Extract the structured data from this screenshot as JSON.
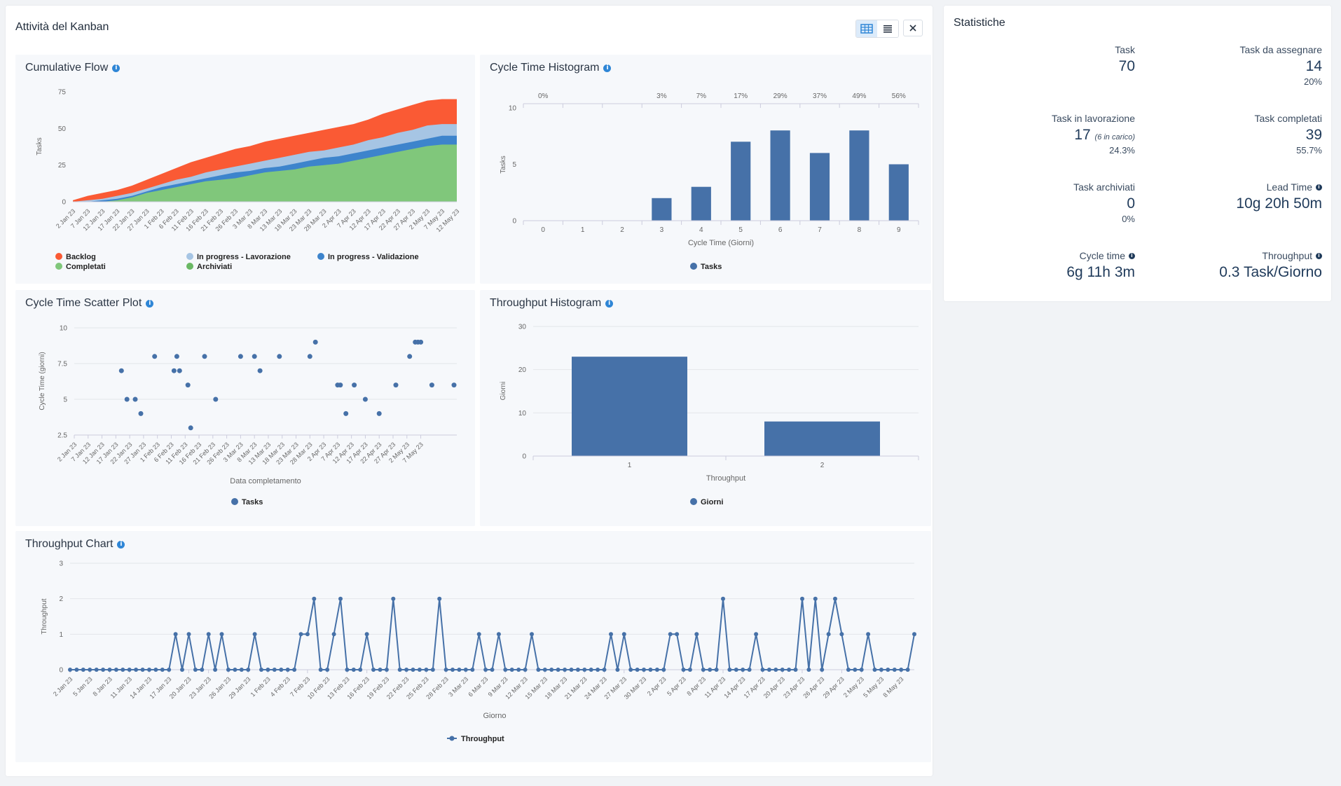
{
  "main": {
    "title": "Attività del Kanban",
    "view_buttons": [
      {
        "icon": "table-grid-icon",
        "active": true
      },
      {
        "icon": "list-icon",
        "active": false
      }
    ],
    "close_icon": "close-icon"
  },
  "colors": {
    "accent": "#2f86d6",
    "series_blue": "#4671a8",
    "backlog": "#fa5a34",
    "lavorazione": "#a6c5e4",
    "validazione": "#3d84cc",
    "completati": "#80c77b"
  },
  "stats": {
    "title": "Statistiche",
    "items": [
      {
        "label": "Task",
        "value": "70"
      },
      {
        "label": "Task da assegnare",
        "value": "14",
        "sub": "20%"
      },
      {
        "label": "Task in lavorazione",
        "value": "17",
        "note": "(6 in carico)",
        "sub": "24.3%"
      },
      {
        "label": "Task completati",
        "value": "39",
        "sub": "55.7%"
      },
      {
        "label": "Task archiviati",
        "value": "0",
        "sub": "0%"
      },
      {
        "label": "Lead Time",
        "value": "10g 20h 50m",
        "info": true
      },
      {
        "label": "Cycle time",
        "value": "6g 11h 3m",
        "info": true
      },
      {
        "label": "Throughput",
        "value": "0.3 Task/Giorno",
        "info": true
      }
    ]
  },
  "chart_data": [
    {
      "id": "cfd",
      "title": "Cumulative Flow",
      "type": "area",
      "ylabel": "Tasks",
      "ylim": [
        0,
        75
      ],
      "yticks": [
        "0",
        "25",
        "50",
        "75"
      ],
      "x_labels": [
        "2 Jan 23",
        "7 Jan 23",
        "12 Jan 23",
        "17 Jan 23",
        "22 Jan 23",
        "27 Jan 23",
        "1 Feb 23",
        "6 Feb 23",
        "11 Feb 23",
        "16 Feb 23",
        "21 Feb 23",
        "26 Feb 23",
        "3 Mar 23",
        "8 Mar 23",
        "13 Mar 23",
        "18 Mar 23",
        "23 Mar 23",
        "28 Mar 23",
        "2 Apr 23",
        "7 Apr 23",
        "12 Apr 23",
        "17 Apr 23",
        "22 Apr 23",
        "27 Apr 23",
        "2 May 23",
        "7 May 23",
        "12 May 23"
      ],
      "legend": [
        {
          "name": "Backlog",
          "color": "#fa5a34"
        },
        {
          "name": "In progress - Lavorazione",
          "color": "#a6c5e4"
        },
        {
          "name": "In progress - Validazione",
          "color": "#3d84cc"
        },
        {
          "name": "Completati",
          "color": "#80c77b"
        },
        {
          "name": "Archiviati",
          "color": "#6ab864"
        }
      ],
      "series": [
        {
          "name": "Completati",
          "values": [
            0,
            0,
            0,
            1,
            3,
            6,
            8,
            10,
            12,
            14,
            15,
            16,
            18,
            20,
            21,
            22,
            24,
            25,
            26,
            28,
            30,
            32,
            34,
            36,
            38,
            39,
            39
          ]
        },
        {
          "name": "In progress - Validazione",
          "values": [
            0,
            0,
            1,
            2,
            4,
            7,
            10,
            12,
            14,
            16,
            18,
            20,
            21,
            23,
            24,
            26,
            28,
            30,
            31,
            33,
            35,
            37,
            39,
            41,
            43,
            45,
            45
          ]
        },
        {
          "name": "In progress - Lavorazione",
          "values": [
            0,
            1,
            2,
            4,
            6,
            9,
            12,
            15,
            17,
            20,
            22,
            24,
            26,
            28,
            30,
            32,
            34,
            35,
            37,
            39,
            42,
            44,
            47,
            49,
            52,
            53,
            53
          ]
        },
        {
          "name": "Backlog",
          "values": [
            1,
            4,
            6,
            8,
            11,
            15,
            19,
            23,
            27,
            30,
            33,
            36,
            38,
            41,
            43,
            45,
            47,
            49,
            51,
            53,
            56,
            60,
            63,
            66,
            69,
            70,
            70
          ]
        }
      ]
    },
    {
      "id": "cth",
      "title": "Cycle Time Histogram",
      "type": "bar",
      "ylabel": "Tasks",
      "xlabel": "Cycle Time (Giorni)",
      "ylim": [
        0,
        10
      ],
      "yticks": [
        "0",
        "5",
        "10"
      ],
      "categories": [
        "0",
        "1",
        "2",
        "3",
        "4",
        "5",
        "6",
        "7",
        "8",
        "9"
      ],
      "values": [
        0,
        0,
        0,
        2,
        3,
        7,
        8,
        6,
        8,
        5
      ],
      "percentiles": [
        "0%",
        "",
        "",
        "3%",
        "7%",
        "17%",
        "29%",
        "37%",
        "49%",
        "56%"
      ],
      "legend": "Tasks"
    },
    {
      "id": "scatter",
      "title": "Cycle Time Scatter Plot",
      "type": "scatter",
      "ylabel": "Cycle Time (giorni)",
      "xlabel": "Data completamento",
      "ylim": [
        2.5,
        10
      ],
      "yticks": [
        "2.5",
        "5",
        "7.5",
        "10"
      ],
      "x_labels": [
        "2 Jan 23",
        "7 Jan 23",
        "12 Jan 23",
        "17 Jan 23",
        "22 Jan 23",
        "27 Jan 23",
        "1 Feb 23",
        "6 Feb 23",
        "11 Feb 23",
        "16 Feb 23",
        "21 Feb 23",
        "26 Feb 23",
        "3 Mar 23",
        "8 Mar 23",
        "13 Mar 23",
        "18 Mar 23",
        "23 Mar 23",
        "28 Mar 23",
        "2 Apr 23",
        "7 Apr 23",
        "12 Apr 23",
        "17 Apr 23",
        "22 Apr 23",
        "27 Apr 23",
        "2 May 23",
        "7 May 23"
      ],
      "points": [
        {
          "x": "19 Jan 23",
          "y": 7
        },
        {
          "x": "21 Jan 23",
          "y": 5
        },
        {
          "x": "24 Jan 23",
          "y": 5
        },
        {
          "x": "26 Jan 23",
          "y": 4
        },
        {
          "x": "31 Jan 23",
          "y": 8
        },
        {
          "x": "7 Feb 23",
          "y": 7
        },
        {
          "x": "8 Feb 23",
          "y": 8
        },
        {
          "x": "9 Feb 23",
          "y": 7
        },
        {
          "x": "12 Feb 23",
          "y": 6
        },
        {
          "x": "13 Feb 23",
          "y": 3
        },
        {
          "x": "18 Feb 23",
          "y": 8
        },
        {
          "x": "22 Feb 23",
          "y": 5
        },
        {
          "x": "3 Mar 23",
          "y": 8
        },
        {
          "x": "8 Mar 23",
          "y": 8
        },
        {
          "x": "10 Mar 23",
          "y": 7
        },
        {
          "x": "17 Mar 23",
          "y": 8
        },
        {
          "x": "28 Mar 23",
          "y": 8
        },
        {
          "x": "30 Mar 23",
          "y": 9
        },
        {
          "x": "7 Apr 23",
          "y": 6
        },
        {
          "x": "8 Apr 23",
          "y": 6
        },
        {
          "x": "10 Apr 23",
          "y": 4
        },
        {
          "x": "13 Apr 23",
          "y": 6
        },
        {
          "x": "17 Apr 23",
          "y": 5
        },
        {
          "x": "22 Apr 23",
          "y": 4
        },
        {
          "x": "28 Apr 23",
          "y": 6
        },
        {
          "x": "3 May 23",
          "y": 8
        },
        {
          "x": "5 May 23",
          "y": 9
        },
        {
          "x": "6 May 23",
          "y": 9
        },
        {
          "x": "7 May 23",
          "y": 9
        },
        {
          "x": "11 May 23",
          "y": 6
        },
        {
          "x": "19 May 23",
          "y": 6
        }
      ],
      "legend": "Tasks"
    },
    {
      "id": "tph",
      "title": "Throughput Histogram",
      "type": "bar",
      "ylabel": "Giorni",
      "xlabel": "Throughput",
      "ylim": [
        0,
        30
      ],
      "yticks": [
        "0",
        "10",
        "20",
        "30"
      ],
      "categories": [
        "1",
        "2"
      ],
      "values": [
        23,
        8
      ],
      "legend": "Giorni"
    },
    {
      "id": "tpc",
      "title": "Throughput Chart",
      "type": "line",
      "ylabel": "Throughput",
      "xlabel": "Giorno",
      "ylim": [
        0,
        3
      ],
      "yticks": [
        "0",
        "1",
        "2",
        "3"
      ],
      "x_labels": [
        "2 Jan 23",
        "5 Jan 23",
        "8 Jan 23",
        "11 Jan 23",
        "14 Jan 23",
        "17 Jan 23",
        "20 Jan 23",
        "23 Jan 23",
        "26 Jan 23",
        "29 Jan 23",
        "1 Feb 23",
        "4 Feb 23",
        "7 Feb 23",
        "10 Feb 23",
        "13 Feb 23",
        "16 Feb 23",
        "19 Feb 23",
        "22 Feb 23",
        "25 Feb 23",
        "28 Feb 23",
        "3 Mar 23",
        "6 Mar 23",
        "9 Mar 23",
        "12 Mar 23",
        "15 Mar 23",
        "18 Mar 23",
        "21 Mar 23",
        "24 Mar 23",
        "27 Mar 23",
        "30 Mar 23",
        "2 Apr 23",
        "5 Apr 23",
        "8 Apr 23",
        "11 Apr 23",
        "14 Apr 23",
        "17 Apr 23",
        "20 Apr 23",
        "23 Apr 23",
        "26 Apr 23",
        "29 Apr 23",
        "2 May 23",
        "5 May 23",
        "8 May 23"
      ],
      "values": [
        0,
        0,
        0,
        0,
        0,
        0,
        0,
        0,
        0,
        0,
        0,
        0,
        0,
        0,
        0,
        0,
        1,
        0,
        1,
        0,
        0,
        1,
        0,
        1,
        0,
        0,
        0,
        0,
        1,
        0,
        0,
        0,
        0,
        0,
        0,
        1,
        1,
        2,
        0,
        0,
        1,
        2,
        0,
        0,
        0,
        1,
        0,
        0,
        0,
        2,
        0,
        0,
        0,
        0,
        0,
        0,
        2,
        0,
        0,
        0,
        0,
        0,
        1,
        0,
        0,
        1,
        0,
        0,
        0,
        0,
        1,
        0,
        0,
        0,
        0,
        0,
        0,
        0,
        0,
        0,
        0,
        0,
        1,
        0,
        1,
        0,
        0,
        0,
        0,
        0,
        0,
        1,
        1,
        0,
        0,
        1,
        0,
        0,
        0,
        2,
        0,
        0,
        0,
        0,
        1,
        0,
        0,
        0,
        0,
        0,
        0,
        2,
        0,
        2,
        0,
        1,
        2,
        1,
        0,
        0,
        0,
        1,
        0,
        0,
        0,
        0,
        0,
        0,
        1
      ],
      "legend": "Throughput"
    }
  ]
}
